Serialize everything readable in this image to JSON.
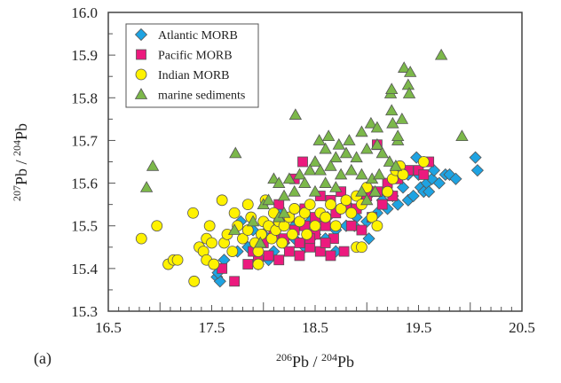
{
  "chart_data": {
    "type": "scatter",
    "panel_label": "(a)",
    "xlabel": {
      "pre1": "206",
      "main1": "Pb / ",
      "pre2": "204",
      "main2": "Pb"
    },
    "ylabel": {
      "pre1": "207",
      "main1": "Pb / ",
      "pre2": "204",
      "main2": "Pb"
    },
    "xlim": [
      16.5,
      20.5
    ],
    "ylim": [
      15.3,
      16.0
    ],
    "x_ticks": [
      "16.5",
      "17.5",
      "18.5",
      "19.5",
      "20.5"
    ],
    "y_ticks": [
      "15.3",
      "15.4",
      "15.5",
      "15.6",
      "15.7",
      "15.8",
      "15.9",
      "16.0"
    ],
    "grid": false,
    "legend_position": "top-left",
    "series": [
      {
        "name": "Atlantic MORB",
        "marker": "diamond",
        "color": "#1ea3e2",
        "points": [
          [
            17.55,
            15.38
          ],
          [
            17.58,
            15.37
          ],
          [
            17.56,
            15.39
          ],
          [
            17.62,
            15.42
          ],
          [
            17.75,
            15.44
          ],
          [
            17.85,
            15.45
          ],
          [
            17.78,
            15.51
          ],
          [
            17.95,
            15.41
          ],
          [
            18.05,
            15.42
          ],
          [
            18.1,
            15.44
          ],
          [
            18.2,
            15.46
          ],
          [
            18.3,
            15.47
          ],
          [
            18.4,
            15.45
          ],
          [
            18.5,
            15.48
          ],
          [
            18.6,
            15.47
          ],
          [
            18.7,
            15.49
          ],
          [
            18.8,
            15.5
          ],
          [
            18.9,
            15.52
          ],
          [
            19.0,
            15.51
          ],
          [
            19.1,
            15.53
          ],
          [
            19.2,
            15.54
          ],
          [
            19.3,
            15.55
          ],
          [
            19.4,
            15.56
          ],
          [
            19.45,
            15.57
          ],
          [
            19.52,
            15.59
          ],
          [
            19.55,
            15.58
          ],
          [
            19.58,
            15.6
          ],
          [
            19.63,
            15.61
          ],
          [
            19.7,
            15.6
          ],
          [
            19.76,
            15.62
          ],
          [
            19.8,
            15.62
          ],
          [
            19.86,
            15.61
          ],
          [
            20.05,
            15.66
          ],
          [
            20.07,
            15.63
          ],
          [
            19.48,
            15.66
          ],
          [
            19.4,
            15.62
          ],
          [
            19.35,
            15.59
          ],
          [
            19.25,
            15.57
          ],
          [
            18.95,
            15.55
          ],
          [
            18.85,
            15.54
          ],
          [
            19.05,
            15.58
          ],
          [
            19.15,
            15.56
          ],
          [
            18.62,
            15.52
          ],
          [
            18.45,
            15.51
          ],
          [
            18.3,
            15.5
          ],
          [
            18.15,
            15.53
          ],
          [
            18.0,
            15.48
          ],
          [
            17.9,
            15.49
          ],
          [
            19.02,
            15.47
          ],
          [
            18.88,
            15.5
          ],
          [
            18.7,
            15.44
          ],
          [
            19.5,
            15.62
          ],
          [
            19.65,
            15.63
          ],
          [
            19.6,
            15.58
          ]
        ]
      },
      {
        "name": "Pacific MORB",
        "marker": "square",
        "color": "#ec1a7e",
        "points": [
          [
            17.6,
            15.4
          ],
          [
            17.72,
            15.37
          ],
          [
            17.85,
            15.41
          ],
          [
            17.95,
            15.42
          ],
          [
            18.05,
            15.43
          ],
          [
            18.15,
            15.42
          ],
          [
            18.25,
            15.44
          ],
          [
            18.35,
            15.43
          ],
          [
            18.45,
            15.45
          ],
          [
            18.55,
            15.44
          ],
          [
            18.65,
            15.43
          ],
          [
            18.78,
            15.44
          ],
          [
            18.2,
            15.47
          ],
          [
            18.3,
            15.49
          ],
          [
            18.4,
            15.5
          ],
          [
            18.5,
            15.52
          ],
          [
            18.6,
            15.5
          ],
          [
            18.7,
            15.53
          ],
          [
            18.8,
            15.55
          ],
          [
            18.9,
            15.54
          ],
          [
            19.0,
            15.57
          ],
          [
            19.1,
            15.58
          ],
          [
            19.2,
            15.6
          ],
          [
            19.3,
            15.61
          ],
          [
            19.4,
            15.63
          ],
          [
            19.5,
            15.63
          ],
          [
            19.6,
            15.65
          ],
          [
            19.55,
            15.62
          ],
          [
            19.1,
            15.69
          ],
          [
            18.38,
            15.65
          ],
          [
            18.3,
            15.61
          ],
          [
            18.1,
            15.48
          ],
          [
            18.15,
            15.55
          ],
          [
            18.0,
            15.46
          ],
          [
            18.5,
            15.48
          ],
          [
            18.68,
            15.47
          ],
          [
            18.85,
            15.5
          ],
          [
            18.95,
            15.49
          ],
          [
            19.05,
            15.52
          ],
          [
            18.75,
            15.58
          ],
          [
            18.65,
            15.56
          ],
          [
            18.55,
            15.57
          ],
          [
            19.15,
            15.55
          ],
          [
            19.25,
            15.57
          ],
          [
            18.4,
            15.54
          ],
          [
            18.25,
            15.52
          ],
          [
            18.6,
            15.46
          ],
          [
            18.45,
            15.47
          ],
          [
            17.9,
            15.44
          ],
          [
            18.35,
            15.46
          ]
        ]
      },
      {
        "name": "Indian MORB",
        "marker": "circle",
        "color": "#fff200",
        "points": [
          [
            16.82,
            15.47
          ],
          [
            16.97,
            15.5
          ],
          [
            17.08,
            15.41
          ],
          [
            17.13,
            15.42
          ],
          [
            17.17,
            15.42
          ],
          [
            17.33,
            15.37
          ],
          [
            17.32,
            15.53
          ],
          [
            17.38,
            15.45
          ],
          [
            17.42,
            15.44
          ],
          [
            17.45,
            15.47
          ],
          [
            17.48,
            15.5
          ],
          [
            17.5,
            15.46
          ],
          [
            17.45,
            15.42
          ],
          [
            17.52,
            15.41
          ],
          [
            17.62,
            15.46
          ],
          [
            17.65,
            15.48
          ],
          [
            17.7,
            15.44
          ],
          [
            17.72,
            15.53
          ],
          [
            17.75,
            15.5
          ],
          [
            17.8,
            15.47
          ],
          [
            17.85,
            15.49
          ],
          [
            17.88,
            15.52
          ],
          [
            17.92,
            15.46
          ],
          [
            17.95,
            15.44
          ],
          [
            17.98,
            15.48
          ],
          [
            18.0,
            15.51
          ],
          [
            18.02,
            15.56
          ],
          [
            18.05,
            15.5
          ],
          [
            18.08,
            15.47
          ],
          [
            18.1,
            15.53
          ],
          [
            18.12,
            15.49
          ],
          [
            18.15,
            15.51
          ],
          [
            18.18,
            15.46
          ],
          [
            18.2,
            15.5
          ],
          [
            18.25,
            15.52
          ],
          [
            18.28,
            15.48
          ],
          [
            18.3,
            15.54
          ],
          [
            18.35,
            15.51
          ],
          [
            18.4,
            15.53
          ],
          [
            18.42,
            15.48
          ],
          [
            18.45,
            15.55
          ],
          [
            18.5,
            15.5
          ],
          [
            18.55,
            15.53
          ],
          [
            18.6,
            15.52
          ],
          [
            18.65,
            15.55
          ],
          [
            18.7,
            15.5
          ],
          [
            18.75,
            15.54
          ],
          [
            18.8,
            15.56
          ],
          [
            18.85,
            15.53
          ],
          [
            18.9,
            15.57
          ],
          [
            18.95,
            15.55
          ],
          [
            19.05,
            15.52
          ],
          [
            19.1,
            15.5
          ],
          [
            19.2,
            15.58
          ],
          [
            19.25,
            15.61
          ],
          [
            19.28,
            15.63
          ],
          [
            19.32,
            15.64
          ],
          [
            19.35,
            15.62
          ],
          [
            19.55,
            15.65
          ],
          [
            19.0,
            15.59
          ],
          [
            17.95,
            15.41
          ],
          [
            18.9,
            15.45
          ],
          [
            18.95,
            15.45
          ],
          [
            17.6,
            15.56
          ],
          [
            17.85,
            15.55
          ]
        ]
      },
      {
        "name": "marine sediments",
        "marker": "triangle",
        "color": "#7cb84a",
        "points": [
          [
            16.87,
            15.59
          ],
          [
            16.93,
            15.64
          ],
          [
            17.73,
            15.67
          ],
          [
            18.31,
            15.76
          ],
          [
            19.72,
            15.9
          ],
          [
            19.36,
            15.87
          ],
          [
            19.42,
            15.86
          ],
          [
            19.4,
            15.83
          ],
          [
            19.41,
            15.81
          ],
          [
            19.23,
            15.81
          ],
          [
            19.24,
            15.82
          ],
          [
            19.24,
            15.77
          ],
          [
            19.34,
            15.75
          ],
          [
            19.04,
            15.74
          ],
          [
            19.25,
            15.74
          ],
          [
            19.1,
            15.73
          ],
          [
            19.3,
            15.7
          ],
          [
            19.3,
            15.71
          ],
          [
            19.92,
            15.71
          ],
          [
            18.54,
            15.7
          ],
          [
            18.63,
            15.71
          ],
          [
            18.73,
            15.69
          ],
          [
            18.83,
            15.7
          ],
          [
            18.95,
            15.72
          ],
          [
            19.1,
            15.69
          ],
          [
            18.6,
            15.68
          ],
          [
            18.7,
            15.66
          ],
          [
            18.8,
            15.67
          ],
          [
            18.9,
            15.66
          ],
          [
            19.0,
            15.68
          ],
          [
            19.15,
            15.67
          ],
          [
            19.22,
            15.65
          ],
          [
            19.28,
            15.64
          ],
          [
            18.5,
            15.65
          ],
          [
            18.45,
            15.63
          ],
          [
            18.55,
            15.63
          ],
          [
            18.65,
            15.64
          ],
          [
            18.75,
            15.62
          ],
          [
            18.85,
            15.63
          ],
          [
            18.95,
            15.62
          ],
          [
            19.05,
            15.61
          ],
          [
            19.12,
            15.62
          ],
          [
            18.35,
            15.62
          ],
          [
            18.25,
            15.61
          ],
          [
            18.4,
            15.6
          ],
          [
            18.6,
            15.6
          ],
          [
            18.7,
            15.59
          ],
          [
            18.1,
            15.61
          ],
          [
            18.15,
            15.6
          ],
          [
            18.2,
            15.57
          ],
          [
            18.3,
            15.58
          ],
          [
            18.0,
            15.55
          ],
          [
            18.05,
            15.56
          ],
          [
            18.15,
            15.52
          ],
          [
            18.2,
            15.53
          ],
          [
            17.9,
            15.51
          ],
          [
            17.97,
            15.46
          ],
          [
            17.72,
            15.49
          ],
          [
            18.95,
            15.58
          ],
          [
            19.0,
            15.56
          ],
          [
            19.08,
            15.58
          ],
          [
            18.5,
            15.58
          ]
        ]
      }
    ]
  }
}
